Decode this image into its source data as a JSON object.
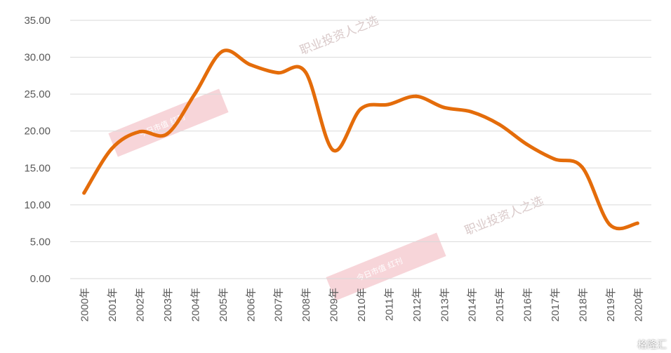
{
  "chart_data": {
    "type": "line",
    "categories": [
      "2000年",
      "2001年",
      "2002年",
      "2003年",
      "2004年",
      "2005年",
      "2006年",
      "2007年",
      "2008年",
      "2009年",
      "2010年",
      "2011年",
      "2012年",
      "2013年",
      "2014年",
      "2015年",
      "2016年",
      "2017年",
      "2018年",
      "2019年",
      "2020年"
    ],
    "series": [
      {
        "values": [
          11.6,
          17.6,
          19.9,
          19.6,
          25.0,
          30.8,
          29.0,
          27.9,
          28.0,
          17.4,
          23.0,
          23.6,
          24.7,
          23.2,
          22.6,
          20.9,
          18.2,
          16.2,
          15.1,
          7.3,
          7.5
        ]
      }
    ],
    "ylim": [
      0,
      35
    ],
    "yticks": [
      "0.00",
      "5.00",
      "10.00",
      "15.00",
      "20.00",
      "25.00",
      "30.00",
      "35.00"
    ],
    "grid": true,
    "line_color": "#e46c0a"
  },
  "watermark": {
    "text": "职业投资人之选",
    "badge": "今日市值 红刊"
  },
  "brand": "格隆汇"
}
